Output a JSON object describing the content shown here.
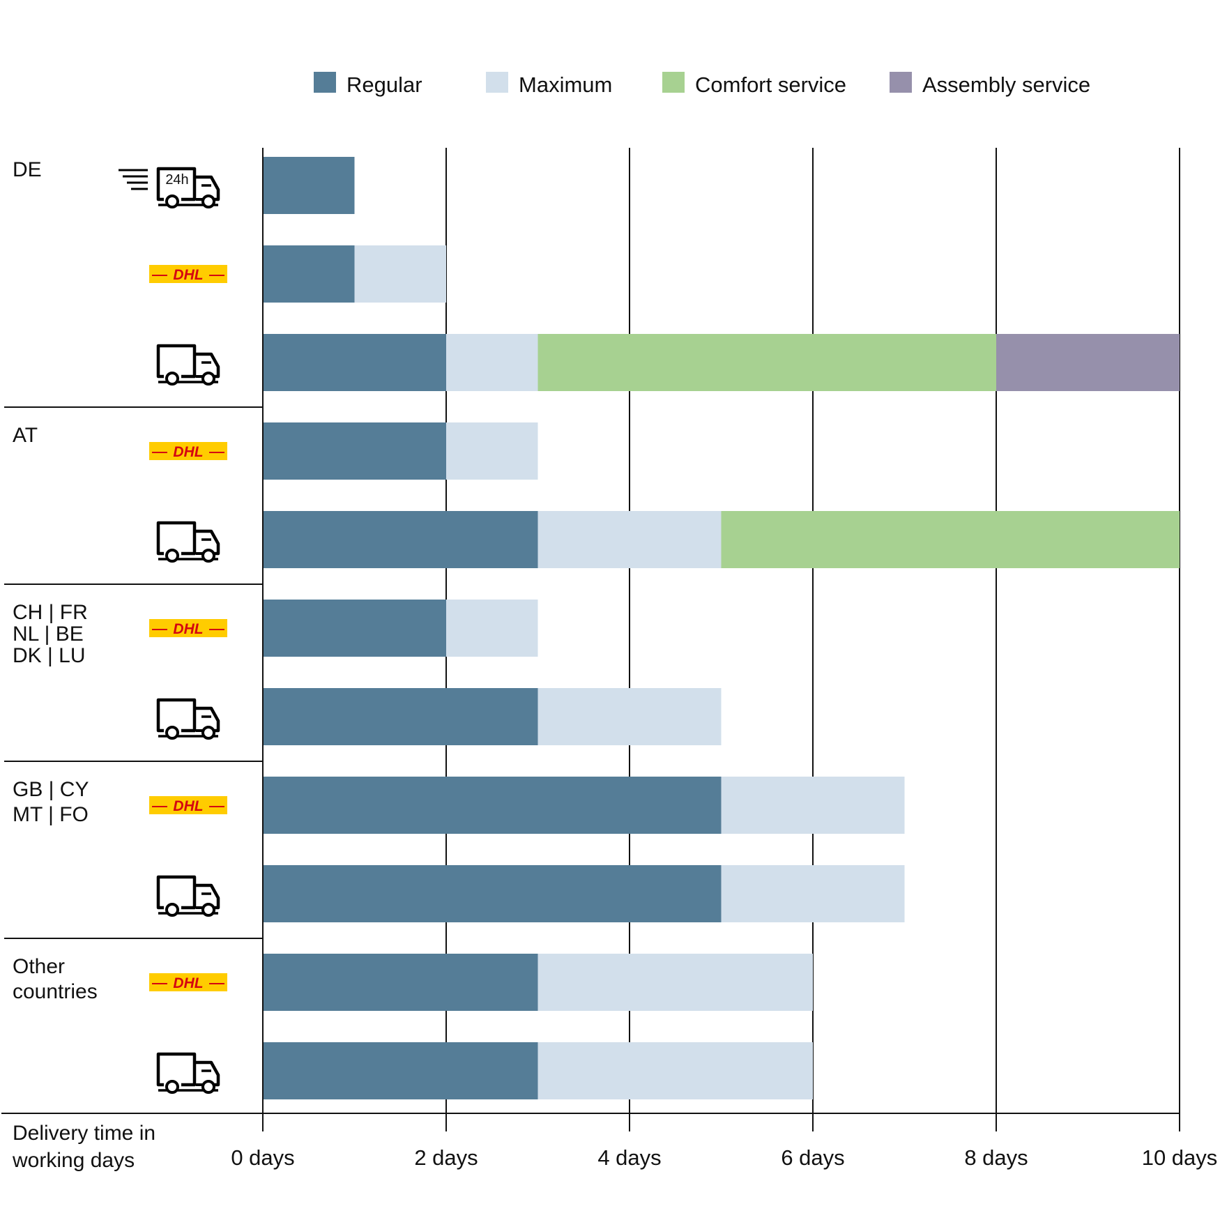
{
  "colors": {
    "regular": "#557d97",
    "maximum": "#d2dfeb",
    "comfort": "#a7d191",
    "assembly": "#9690ab",
    "dhl_yellow": "#ffcc00",
    "dhl_red": "#d40511",
    "grid": "#111111"
  },
  "chart_data": {
    "type": "bar",
    "orientation": "horizontal",
    "stacked": true,
    "xlim": [
      0,
      10
    ],
    "xticks": [
      0,
      2,
      4,
      6,
      8,
      10
    ],
    "xtick_labels": [
      "0 days",
      "2 days",
      "4 days",
      "6 days",
      "8 days",
      "10 days"
    ],
    "xlabel": "Delivery time in working days",
    "xlabel_lines": [
      "Delivery time in",
      "working days"
    ],
    "grid": "vertical",
    "legend_position": "top",
    "legend": [
      {
        "key": "regular",
        "label": "Regular"
      },
      {
        "key": "maximum",
        "label": "Maximum"
      },
      {
        "key": "comfort",
        "label": "Comfort service"
      },
      {
        "key": "assembly",
        "label": "Assembly service"
      }
    ],
    "groups": [
      {
        "label_lines": [
          "DE"
        ],
        "rows": [
          {
            "icon": "express-24h-truck-icon",
            "icon_text": "24h",
            "regular": 1,
            "maximum": 1,
            "comfort": 1,
            "assembly": 1
          },
          {
            "icon": "dhl-logo",
            "icon_text": "DHL",
            "regular": 1,
            "maximum": 2,
            "comfort": 2,
            "assembly": 2
          },
          {
            "icon": "truck-icon",
            "regular": 2,
            "maximum": 3,
            "comfort": 8,
            "assembly": 10
          }
        ]
      },
      {
        "label_lines": [
          "AT"
        ],
        "rows": [
          {
            "icon": "dhl-logo",
            "icon_text": "DHL",
            "regular": 2,
            "maximum": 3,
            "comfort": 3,
            "assembly": 3
          },
          {
            "icon": "truck-icon",
            "regular": 3,
            "maximum": 5,
            "comfort": 10,
            "assembly": 10
          }
        ]
      },
      {
        "label_lines": [
          "CH | FR",
          "NL | BE",
          "DK | LU"
        ],
        "rows": [
          {
            "icon": "dhl-logo",
            "icon_text": "DHL",
            "regular": 2,
            "maximum": 3,
            "comfort": 3,
            "assembly": 3
          },
          {
            "icon": "truck-icon",
            "regular": 3,
            "maximum": 5,
            "comfort": 5,
            "assembly": 5
          }
        ]
      },
      {
        "label_lines": [
          "GB | CY",
          "MT | FO"
        ],
        "rows": [
          {
            "icon": "dhl-logo",
            "icon_text": "DHL",
            "regular": 5,
            "maximum": 7,
            "comfort": 7,
            "assembly": 7
          },
          {
            "icon": "truck-icon",
            "regular": 5,
            "maximum": 7,
            "comfort": 7,
            "assembly": 7
          }
        ]
      },
      {
        "label_lines": [
          "Other",
          "countries"
        ],
        "rows": [
          {
            "icon": "dhl-logo",
            "icon_text": "DHL",
            "regular": 3,
            "maximum": 6,
            "comfort": 6,
            "assembly": 6
          },
          {
            "icon": "truck-icon",
            "regular": 3,
            "maximum": 6,
            "comfort": 6,
            "assembly": 6
          }
        ]
      }
    ]
  }
}
